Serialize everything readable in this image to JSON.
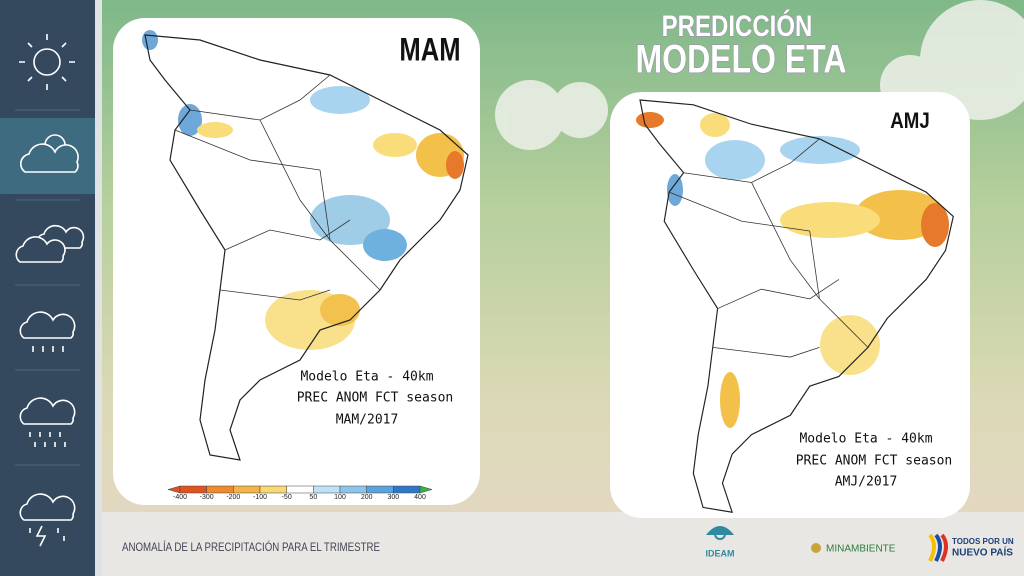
{
  "header": {
    "kicker": "PREDICCIÓN",
    "title": "MODELO ETA"
  },
  "maps": [
    {
      "label": "MAM",
      "caption": [
        "Modelo Eta - 40km",
        "PREC ANOM FCT season",
        "MAM/2017"
      ]
    },
    {
      "label": "AMJ",
      "caption": [
        "Modelo Eta - 40km",
        "PREC ANOM FCT season",
        "AMJ/2017"
      ]
    }
  ],
  "colorbar": {
    "ticks": [
      -400,
      -300,
      -200,
      -100,
      -50,
      50,
      100,
      200,
      300,
      400
    ]
  },
  "footer": {
    "text": "ANOMALÍA DE LA PRECIPITACIÓN PARA EL TRIMESTRE",
    "logos": {
      "ideam": "IDEAM",
      "minambiente": "MINAMBIENTE",
      "gobierno": [
        "TODOS POR UN",
        "NUEVO PAÍS"
      ]
    }
  }
}
